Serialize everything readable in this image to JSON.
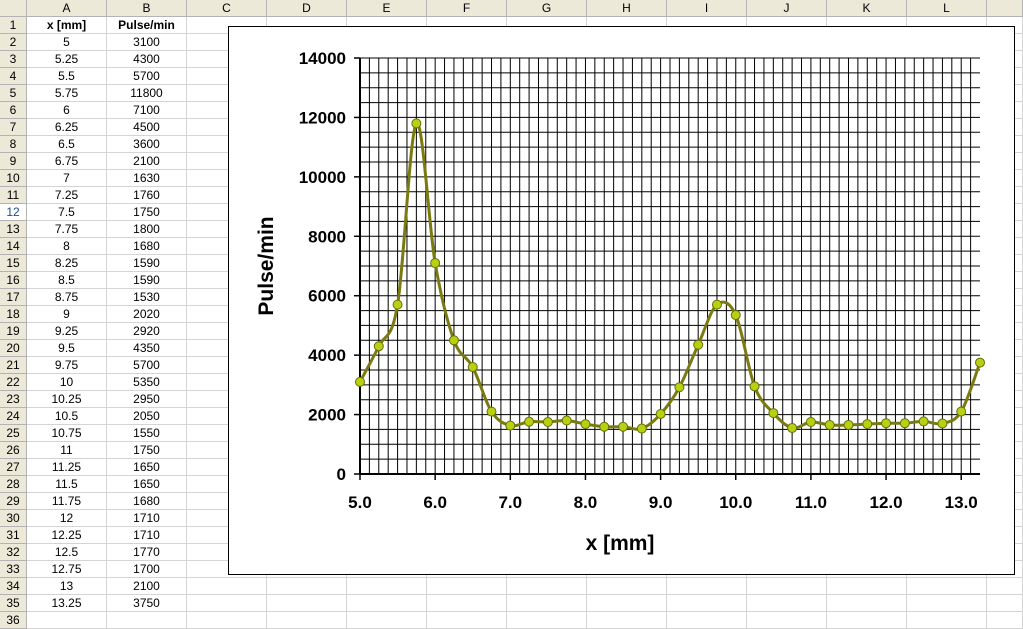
{
  "columns": [
    "A",
    "B",
    "C",
    "D",
    "E",
    "F",
    "G",
    "H",
    "I",
    "J",
    "K",
    "L"
  ],
  "selected_row": 12,
  "table": {
    "headers": [
      "x [mm]",
      "Pulse/min"
    ],
    "rows": [
      [
        "5",
        "3100"
      ],
      [
        "5.25",
        "4300"
      ],
      [
        "5.5",
        "5700"
      ],
      [
        "5.75",
        "11800"
      ],
      [
        "6",
        "7100"
      ],
      [
        "6.25",
        "4500"
      ],
      [
        "6.5",
        "3600"
      ],
      [
        "6.75",
        "2100"
      ],
      [
        "7",
        "1630"
      ],
      [
        "7.25",
        "1760"
      ],
      [
        "7.5",
        "1750"
      ],
      [
        "7.75",
        "1800"
      ],
      [
        "8",
        "1680"
      ],
      [
        "8.25",
        "1590"
      ],
      [
        "8.5",
        "1590"
      ],
      [
        "8.75",
        "1530"
      ],
      [
        "9",
        "2020"
      ],
      [
        "9.25",
        "2920"
      ],
      [
        "9.5",
        "4350"
      ],
      [
        "9.75",
        "5700"
      ],
      [
        "10",
        "5350"
      ],
      [
        "10.25",
        "2950"
      ],
      [
        "10.5",
        "2050"
      ],
      [
        "10.75",
        "1550"
      ],
      [
        "11",
        "1750"
      ],
      [
        "11.25",
        "1650"
      ],
      [
        "11.5",
        "1650"
      ],
      [
        "11.75",
        "1680"
      ],
      [
        "12",
        "1710"
      ],
      [
        "12.25",
        "1710"
      ],
      [
        "12.5",
        "1770"
      ],
      [
        "12.75",
        "1700"
      ],
      [
        "13",
        "2100"
      ],
      [
        "13.25",
        "3750"
      ]
    ]
  },
  "chart_data": {
    "type": "line",
    "xlabel": "x [mm]",
    "ylabel": "Pulse/min",
    "xlim": [
      5.0,
      13.25
    ],
    "ylim": [
      0,
      14000
    ],
    "x_ticks": [
      5,
      6,
      7,
      8,
      9,
      10,
      11,
      12,
      13
    ],
    "x_tick_labels": [
      "5.0",
      "6.0",
      "7.0",
      "8.0",
      "9.0",
      "10.0",
      "11.0",
      "12.0",
      "13.0"
    ],
    "y_ticks": [
      0,
      2000,
      4000,
      6000,
      8000,
      10000,
      12000,
      14000
    ],
    "y_tick_labels": [
      "0",
      "2000",
      "4000",
      "6000",
      "8000",
      "10000",
      "12000",
      "14000"
    ],
    "grid": true,
    "line_color": "#7a7a10",
    "marker_color": "#b5d10f",
    "series": [
      {
        "x": [
          5,
          5.25,
          5.5,
          5.75,
          6,
          6.25,
          6.5,
          6.75,
          7,
          7.25,
          7.5,
          7.75,
          8,
          8.25,
          8.5,
          8.75,
          9,
          9.25,
          9.5,
          9.75,
          10,
          10.25,
          10.5,
          10.75,
          11,
          11.25,
          11.5,
          11.75,
          12,
          12.25,
          12.5,
          12.75,
          13,
          13.25
        ],
        "y": [
          3100,
          4300,
          5700,
          11800,
          7100,
          4500,
          3600,
          2100,
          1630,
          1760,
          1750,
          1800,
          1680,
          1590,
          1590,
          1530,
          2020,
          2920,
          4350,
          5700,
          5350,
          2950,
          2050,
          1550,
          1750,
          1650,
          1650,
          1680,
          1710,
          1710,
          1770,
          1700,
          2100,
          3750
        ]
      }
    ]
  }
}
